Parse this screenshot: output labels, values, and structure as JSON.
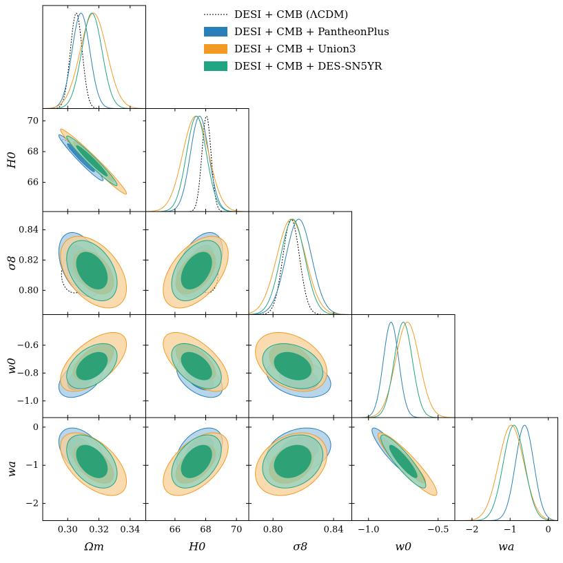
{
  "colors": {
    "lcdm": "#000000",
    "pantheon": "#2a7fb8",
    "union3": "#f39a22",
    "des": "#1fa580",
    "pantheon_fill": "#9fc7e4",
    "union3_fill": "#f8cf95",
    "des_fill": "#8fd2bf",
    "pantheon_inner": "#2a7fb8",
    "union3_inner": "#f39a22",
    "des_inner": "#1a9a70"
  },
  "chart_data": {
    "type": "corner",
    "parameters": [
      {
        "key": "om",
        "label": "Ωm",
        "ticks": [
          0.3,
          0.32,
          0.34
        ],
        "tick_labels": [
          "0.30",
          "0.32",
          "0.34"
        ],
        "range": [
          0.284,
          0.35
        ]
      },
      {
        "key": "h0",
        "label": "H0",
        "ticks": [
          66,
          68,
          70
        ],
        "tick_labels": [
          "66",
          "68",
          "70"
        ],
        "range": [
          64.1,
          70.8
        ]
      },
      {
        "key": "s8",
        "label": "σ8",
        "ticks": [
          0.8,
          0.84
        ],
        "tick_labels": [
          "0.80",
          "0.84"
        ],
        "y_ticks": [
          0.8,
          0.82,
          0.84
        ],
        "y_tick_labels": [
          "0.80",
          "0.82",
          "0.84"
        ],
        "range": [
          0.784,
          0.852
        ]
      },
      {
        "key": "w0",
        "label": "w0",
        "ticks": [
          -1.0,
          -0.5
        ],
        "tick_labels": [
          "−1.0",
          "−0.5"
        ],
        "y_ticks": [
          -1.0,
          -0.8,
          -0.6
        ],
        "y_tick_labels": [
          "−1.0",
          "−0.8",
          "−0.6"
        ],
        "range": [
          -1.12,
          -0.38
        ]
      },
      {
        "key": "wa",
        "label": "wa",
        "ticks": [
          -2,
          -1,
          0
        ],
        "tick_labels": [
          "−2",
          "−1",
          "0"
        ],
        "range": [
          -2.45,
          0.25
        ]
      }
    ],
    "series": [
      {
        "name": "DESI + CMB (ΛCDM)",
        "style": "dotted",
        "color_key": "lcdm",
        "mean": {
          "om": 0.3055,
          "h0": 68.05,
          "s8": 0.812
        },
        "sigma": {
          "om": 0.0038,
          "h0": 0.3,
          "s8": 0.0055
        },
        "rho": {
          "om|h0": -0.95,
          "om|s8": 0.1,
          "h0|s8": -0.1
        }
      },
      {
        "name": "DESI + CMB + PantheonPlus",
        "style": "filled",
        "color_key": "pantheon",
        "mean": {
          "om": 0.3085,
          "h0": 67.6,
          "s8": 0.817,
          "w0": -0.838,
          "wa": -0.62
        },
        "sigma": {
          "om": 0.0057,
          "h0": 0.6,
          "s8": 0.0085,
          "w0": 0.055,
          "wa": 0.24
        },
        "rho": {
          "om|h0": -0.97,
          "om|s8": -0.4,
          "om|w0": 0.45,
          "om|wa": -0.4,
          "h0|s8": 0.45,
          "h0|w0": -0.5,
          "h0|wa": 0.4,
          "s8|w0": -0.3,
          "s8|wa": 0.25,
          "w0|wa": -0.9
        }
      },
      {
        "name": "DESI + CMB + Union3",
        "style": "filled",
        "color_key": "union3",
        "mean": {
          "om": 0.3165,
          "h0": 67.35,
          "s8": 0.812,
          "w0": -0.72,
          "wa": -0.97
        },
        "sigma": {
          "om": 0.0085,
          "h0": 0.85,
          "s8": 0.0095,
          "w0": 0.085,
          "wa": 0.33
        },
        "rho": {
          "om|h0": -0.98,
          "om|s8": -0.45,
          "om|w0": 0.6,
          "om|wa": -0.55,
          "h0|s8": 0.5,
          "h0|w0": -0.62,
          "h0|wa": 0.55,
          "s8|w0": -0.35,
          "s8|wa": 0.3,
          "w0|wa": -0.92
        }
      },
      {
        "name": "DESI + CMB + DES-SN5YR",
        "style": "filled",
        "color_key": "des",
        "mean": {
          "om": 0.3155,
          "h0": 67.4,
          "s8": 0.813,
          "w0": -0.75,
          "wa": -0.9
        },
        "sigma": {
          "om": 0.0065,
          "h0": 0.65,
          "s8": 0.008,
          "w0": 0.065,
          "wa": 0.28
        },
        "rho": {
          "om|h0": -0.97,
          "om|s8": -0.4,
          "om|w0": 0.45,
          "om|wa": -0.45,
          "h0|s8": 0.45,
          "h0|w0": -0.5,
          "h0|wa": 0.45,
          "s8|w0": -0.3,
          "s8|wa": 0.25,
          "w0|wa": -0.9
        }
      }
    ],
    "legend_position": "upper-right",
    "grid": false
  }
}
